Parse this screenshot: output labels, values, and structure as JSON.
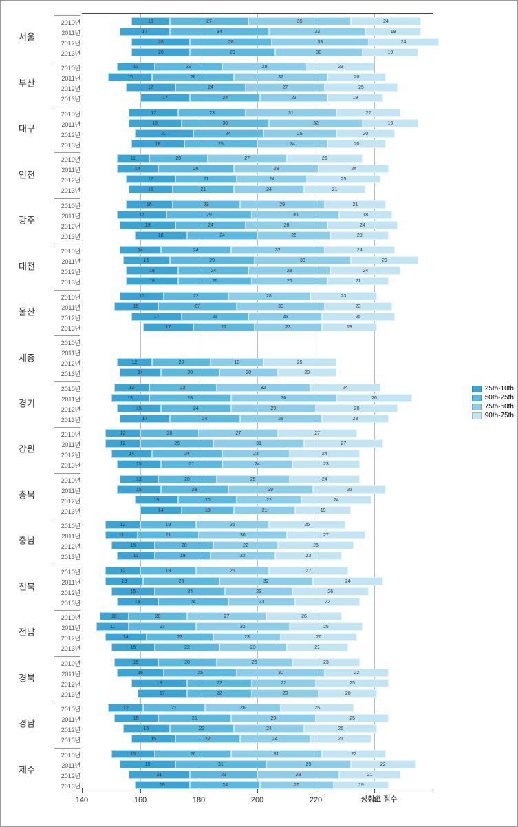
{
  "chart": {
    "type": "stacked_bar_horizontal",
    "x_axis": {
      "min": 140,
      "max": 260,
      "ticks": [
        140,
        160,
        180,
        200,
        220,
        240
      ],
      "title": "성취도 점수"
    },
    "colors": {
      "25-10": "#3aa5d4",
      "50-25": "#5bb8df",
      "75-50": "#8cceea",
      "90-75": "#c3e4f3"
    },
    "legend": [
      {
        "key": "25-10",
        "label": "25th-10th"
      },
      {
        "key": "50-25",
        "label": "50th-25th"
      },
      {
        "key": "75-50",
        "label": "75th-50th"
      },
      {
        "key": "90-75",
        "label": "90th-75th"
      }
    ],
    "year_labels": {
      "2010": "2010년",
      "2011": "2011년",
      "2012": "2012년",
      "2013": "2013년"
    },
    "regions": [
      {
        "name": "서울",
        "rows": [
          {
            "year": "2010",
            "start": 157,
            "segs": [
              13,
              27,
              35,
              24
            ]
          },
          {
            "year": "2011",
            "start": 153,
            "segs": [
              17,
              34,
              33,
              19
            ]
          },
          {
            "year": "2012",
            "start": 157,
            "segs": [
              20,
              28,
              33,
              24
            ]
          },
          {
            "year": "2013",
            "start": 157,
            "segs": [
              20,
              29,
              30,
              19
            ]
          }
        ]
      },
      {
        "name": "부산",
        "rows": [
          {
            "year": "2010",
            "start": 152,
            "segs": [
              13,
              23,
              29,
              23
            ]
          },
          {
            "year": "2011",
            "start": 149,
            "segs": [
              15,
              28,
              32,
              20
            ]
          },
          {
            "year": "2012",
            "start": 155,
            "segs": [
              17,
              24,
              27,
              25
            ]
          },
          {
            "year": "2013",
            "start": 160,
            "segs": [
              17,
              24,
              23,
              19
            ]
          }
        ]
      },
      {
        "name": "대구",
        "rows": [
          {
            "year": "2010",
            "start": 156,
            "segs": [
              17,
              23,
              31,
              22
            ]
          },
          {
            "year": "2011",
            "start": 156,
            "segs": [
              18,
              30,
              32,
              19
            ]
          },
          {
            "year": "2012",
            "start": 158,
            "segs": [
              20,
              24,
              25,
              20
            ]
          },
          {
            "year": "2013",
            "start": 157,
            "segs": [
              18,
              25,
              24,
              20
            ]
          }
        ]
      },
      {
        "name": "인천",
        "rows": [
          {
            "year": "2010",
            "start": 152,
            "segs": [
              11,
              20,
              27,
              26
            ]
          },
          {
            "year": "2011",
            "start": 152,
            "segs": [
              14,
              26,
              29,
              24
            ]
          },
          {
            "year": "2012",
            "start": 155,
            "segs": [
              17,
              21,
              24,
              25
            ]
          },
          {
            "year": "2013",
            "start": 156,
            "segs": [
              15,
              21,
              24,
              21
            ]
          }
        ]
      },
      {
        "name": "광주",
        "rows": [
          {
            "year": "2010",
            "start": 155,
            "segs": [
              16,
              23,
              29,
              21
            ]
          },
          {
            "year": "2011",
            "start": 152,
            "segs": [
              17,
              29,
              30,
              18
            ]
          },
          {
            "year": "2012",
            "start": 153,
            "segs": [
              19,
              24,
              28,
              24
            ]
          },
          {
            "year": "2013",
            "start": 158,
            "segs": [
              18,
              24,
              25,
              20
            ]
          }
        ]
      },
      {
        "name": "대전",
        "rows": [
          {
            "year": "2010",
            "start": 153,
            "segs": [
              14,
              24,
              32,
              24
            ]
          },
          {
            "year": "2011",
            "start": 154,
            "segs": [
              16,
              29,
              33,
              23
            ]
          },
          {
            "year": "2012",
            "start": 155,
            "segs": [
              18,
              24,
              28,
              24
            ]
          },
          {
            "year": "2013",
            "start": 155,
            "segs": [
              18,
              25,
              26,
              21
            ]
          }
        ]
      },
      {
        "name": "울산",
        "rows": [
          {
            "year": "2010",
            "start": 153,
            "segs": [
              15,
              22,
              28,
              23
            ]
          },
          {
            "year": "2011",
            "start": 151,
            "segs": [
              15,
              27,
              30,
              23
            ]
          },
          {
            "year": "2012",
            "start": 157,
            "segs": [
              17,
              23,
              25,
              25
            ]
          },
          {
            "year": "2013",
            "start": 161,
            "segs": [
              17,
              21,
              23,
              19
            ]
          }
        ]
      },
      {
        "name": "세종",
        "rows": [
          {
            "year": "2010",
            "start": null,
            "segs": null
          },
          {
            "year": "2011",
            "start": null,
            "segs": null
          },
          {
            "year": "2012",
            "start": 152,
            "segs": [
              12,
              20,
              18,
              25
            ]
          },
          {
            "year": "2013",
            "start": 153,
            "segs": [
              14,
              20,
              20,
              20
            ]
          }
        ]
      },
      {
        "name": "경기",
        "rows": [
          {
            "year": "2010",
            "start": 151,
            "segs": [
              12,
              23,
              32,
              24
            ]
          },
          {
            "year": "2011",
            "start": 150,
            "segs": [
              13,
              28,
              36,
              26
            ]
          },
          {
            "year": "2012",
            "start": 152,
            "segs": [
              15,
              24,
              29,
              28
            ]
          },
          {
            "year": "2013",
            "start": 153,
            "segs": [
              17,
              24,
              28,
              23
            ]
          }
        ]
      },
      {
        "name": "강원",
        "rows": [
          {
            "year": "2010",
            "start": 148,
            "segs": [
              12,
              20,
              27,
              27
            ]
          },
          {
            "year": "2011",
            "start": 148,
            "segs": [
              12,
              25,
              31,
              27
            ]
          },
          {
            "year": "2012",
            "start": 150,
            "segs": [
              14,
              24,
              23,
              24
            ]
          },
          {
            "year": "2013",
            "start": 152,
            "segs": [
              15,
              21,
              24,
              23
            ]
          }
        ]
      },
      {
        "name": "충북",
        "rows": [
          {
            "year": "2010",
            "start": 153,
            "segs": [
              13,
              20,
              25,
              24
            ]
          },
          {
            "year": "2011",
            "start": 152,
            "segs": [
              15,
              23,
              29,
              25
            ]
          },
          {
            "year": "2012",
            "start": 158,
            "segs": [
              15,
              20,
              22,
              24
            ]
          },
          {
            "year": "2013",
            "start": 160,
            "segs": [
              14,
              18,
              21,
              19
            ]
          }
        ]
      },
      {
        "name": "충남",
        "rows": [
          {
            "year": "2010",
            "start": 148,
            "segs": [
              12,
              19,
              25,
              26
            ]
          },
          {
            "year": "2011",
            "start": 148,
            "segs": [
              11,
              21,
              30,
              27
            ]
          },
          {
            "year": "2012",
            "start": 150,
            "segs": [
              15,
              20,
              22,
              26
            ]
          },
          {
            "year": "2013",
            "start": 152,
            "segs": [
              13,
              19,
              22,
              23
            ]
          }
        ]
      },
      {
        "name": "전북",
        "rows": [
          {
            "year": "2010",
            "start": 148,
            "segs": [
              12,
              19,
              25,
              27
            ]
          },
          {
            "year": "2011",
            "start": 148,
            "segs": [
              13,
              26,
              32,
              24
            ]
          },
          {
            "year": "2012",
            "start": 150,
            "segs": [
              15,
              24,
              23,
              26
            ]
          },
          {
            "year": "2013",
            "start": 152,
            "segs": [
              14,
              24,
              23,
              22
            ]
          }
        ]
      },
      {
        "name": "전남",
        "rows": [
          {
            "year": "2010",
            "start": 146,
            "segs": [
              10,
              20,
              27,
              26
            ]
          },
          {
            "year": "2011",
            "start": 145,
            "segs": [
              11,
              23,
              32,
              25
            ]
          },
          {
            "year": "2012",
            "start": 148,
            "segs": [
              14,
              23,
              23,
              26
            ]
          },
          {
            "year": "2013",
            "start": 150,
            "segs": [
              15,
              22,
              23,
              21
            ]
          }
        ]
      },
      {
        "name": "경북",
        "rows": [
          {
            "year": "2010",
            "start": 151,
            "segs": [
              15,
              20,
              26,
              23
            ]
          },
          {
            "year": "2011",
            "start": 152,
            "segs": [
              16,
              25,
              30,
              22
            ]
          },
          {
            "year": "2012",
            "start": 157,
            "segs": [
              19,
              22,
              22,
              25
            ]
          },
          {
            "year": "2013",
            "start": 159,
            "segs": [
              17,
              22,
              23,
              20
            ]
          }
        ]
      },
      {
        "name": "경남",
        "rows": [
          {
            "year": "2010",
            "start": 149,
            "segs": [
              12,
              21,
              26,
              25
            ]
          },
          {
            "year": "2011",
            "start": 151,
            "segs": [
              15,
              25,
              29,
              25
            ]
          },
          {
            "year": "2012",
            "start": 154,
            "segs": [
              16,
              22,
              24,
              25
            ]
          },
          {
            "year": "2013",
            "start": 157,
            "segs": [
              15,
              22,
              24,
              21
            ]
          }
        ]
      },
      {
        "name": "제주",
        "rows": [
          {
            "year": "2010",
            "start": 150,
            "segs": [
              15,
              26,
              31,
              22
            ]
          },
          {
            "year": "2011",
            "start": 153,
            "segs": [
              19,
              31,
              29,
              22
            ]
          },
          {
            "year": "2012",
            "start": 156,
            "segs": [
              21,
              23,
              28,
              21
            ]
          },
          {
            "year": "2013",
            "start": 158,
            "segs": [
              19,
              24,
              25,
              19
            ]
          }
        ]
      }
    ]
  }
}
